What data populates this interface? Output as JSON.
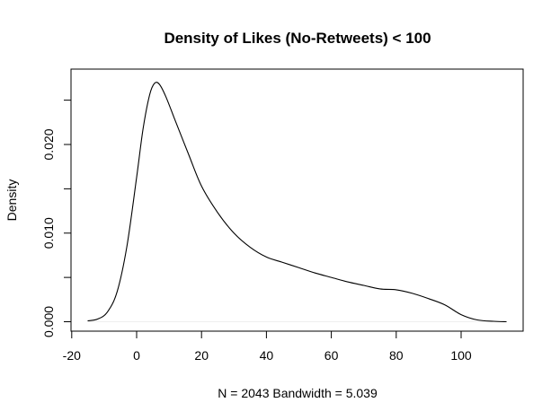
{
  "chart_data": {
    "type": "area",
    "title": "Density of Likes (No-Retweets) < 100",
    "xlabel": "N = 2043   Bandwidth = 5.039",
    "ylabel": "Density",
    "xlim": [
      -20,
      117
    ],
    "ylim": [
      -0.001,
      0.0284
    ],
    "x_ticks": [
      -20,
      0,
      20,
      40,
      60,
      80,
      100
    ],
    "x_tick_labels": [
      "-20",
      "0",
      "20",
      "40",
      "60",
      "80",
      "100"
    ],
    "y_ticks": [
      0.0,
      0.005,
      0.01,
      0.015,
      0.02,
      0.025
    ],
    "y_tick_labels": [
      "0.000",
      "",
      "0.010",
      "",
      "0.020",
      ""
    ],
    "grid": false,
    "legend": "none",
    "series": [
      {
        "x": [
          -15.1,
          -12,
          -9,
          -6,
          -3,
          0,
          2,
          4,
          5.5,
          7,
          9,
          12,
          16,
          20,
          25,
          30,
          35,
          40,
          45,
          50,
          55,
          60,
          65,
          70,
          75,
          80,
          85,
          90,
          95,
          100,
          105,
          110,
          114
        ],
        "y": [
          0.0001,
          0.0003,
          0.0011,
          0.0034,
          0.0085,
          0.0163,
          0.0218,
          0.0256,
          0.0269,
          0.0268,
          0.0254,
          0.0226,
          0.0189,
          0.0153,
          0.0123,
          0.01,
          0.0084,
          0.0073,
          0.0067,
          0.0061,
          0.0055,
          0.005,
          0.0045,
          0.0041,
          0.0037,
          0.0036,
          0.0032,
          0.0026,
          0.0019,
          0.0008,
          0.0002,
          5e-05,
          0.0
        ]
      }
    ],
    "colors": {
      "line": "#000000",
      "axis": "#000000",
      "baseline": "#eeeeee"
    }
  }
}
